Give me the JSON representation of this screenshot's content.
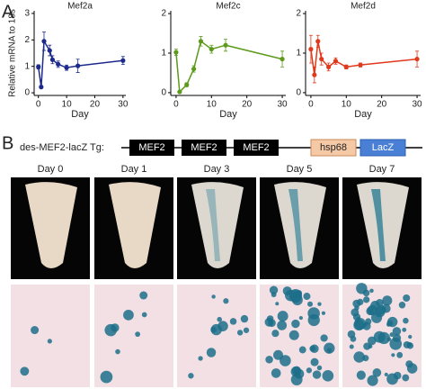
{
  "panel_labels": [
    "A",
    "B"
  ],
  "chart_data": [
    {
      "type": "line",
      "title": "Mef2a",
      "ylabel": "Relative mRNA to 18s",
      "xlabel": "Day",
      "color": "#1c2a8c",
      "x": [
        0,
        1,
        2,
        4,
        5,
        7,
        10,
        14,
        30
      ],
      "values": [
        0.98,
        0.22,
        1.95,
        1.6,
        1.25,
        1.08,
        0.95,
        1.02,
        1.22
      ],
      "errors": [
        0.08,
        0.05,
        0.35,
        0.2,
        0.15,
        0.12,
        0.1,
        0.25,
        0.15
      ],
      "xlim": [
        -1.5,
        31
      ],
      "xticks": [
        0,
        10,
        20,
        30
      ],
      "ylim": [
        -0.1,
        3.1
      ],
      "yticks": [
        0,
        1,
        2,
        3
      ]
    },
    {
      "type": "line",
      "title": "Mef2c",
      "xlabel": "Day",
      "color": "#5c9a1c",
      "x": [
        0,
        1,
        3,
        5,
        7,
        10,
        14,
        30
      ],
      "values": [
        1.02,
        0.02,
        0.2,
        0.6,
        1.3,
        1.1,
        1.2,
        0.85
      ],
      "errors": [
        0.08,
        0.02,
        0.05,
        0.08,
        0.12,
        0.1,
        0.15,
        0.2
      ],
      "xlim": [
        -1.5,
        31
      ],
      "xticks": [
        0,
        10,
        20,
        30
      ],
      "ylim": [
        -0.07,
        2.07
      ],
      "yticks": [
        0,
        1,
        2
      ]
    },
    {
      "type": "line",
      "title": "Mef2d",
      "xlabel": "Day",
      "color": "#e0391c",
      "x": [
        0,
        1,
        2,
        3,
        5,
        7,
        10,
        14,
        30
      ],
      "values": [
        1.1,
        0.45,
        1.3,
        0.85,
        0.65,
        0.8,
        0.65,
        0.7,
        0.85
      ],
      "errors": [
        0.35,
        0.2,
        0.15,
        0.15,
        0.1,
        0.08,
        0.05,
        0.05,
        0.2
      ],
      "xlim": [
        -1.5,
        31
      ],
      "xticks": [
        0,
        10,
        20,
        30
      ],
      "ylim": [
        -0.07,
        2.07
      ],
      "yticks": [
        0,
        1,
        2
      ]
    }
  ],
  "construct": {
    "label": "des-MEF2-lacZ Tg:",
    "elements": [
      "MEF2",
      "MEF2",
      "MEF2",
      "hsp68",
      "LacZ"
    ]
  },
  "days": [
    "Day 0",
    "Day 1",
    "Day 3",
    "Day 5",
    "Day 7"
  ]
}
